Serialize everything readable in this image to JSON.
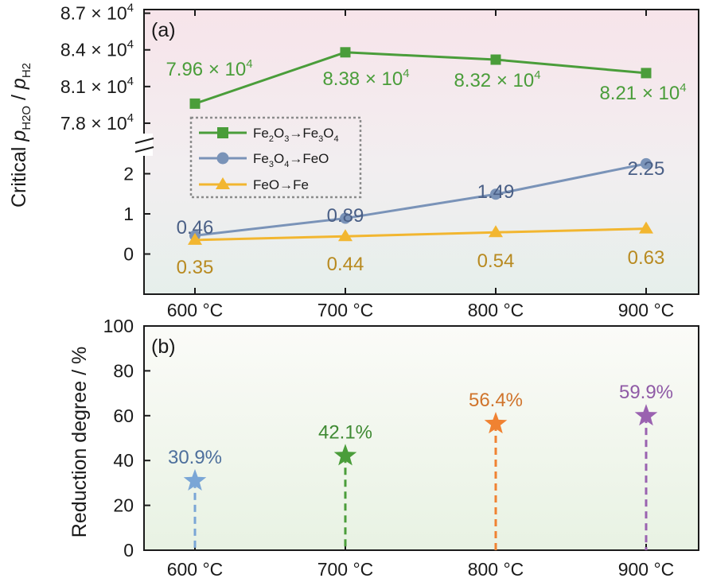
{
  "colors": {
    "fe2o3": "#4a9d3a",
    "fe3o4": "#7a93b8",
    "feo": "#f2b630",
    "star_600": "#7aa6d6",
    "star_700": "#4a9d3a",
    "star_800": "#f08232",
    "star_900": "#9a62b0",
    "label_600": "#4d6f9c",
    "label_700": "#3f8a33",
    "label_800": "#d0742c",
    "label_900": "#8f5aa6",
    "fe3o4_label": "#4a5f86",
    "feo_label": "#b88a20"
  },
  "chart_data": [
    {
      "panel": "(a)",
      "type": "line",
      "ylabel": {
        "prefix": "Critical ",
        "p1": "p",
        "sub1": "H2O",
        "sep": " / ",
        "p2": "p",
        "sub2": "H2"
      },
      "categories": [
        "600 °C",
        "700 °C",
        "800 °C",
        "900 °C"
      ],
      "broken_axis": true,
      "upper_ticks": [
        {
          "value": 78000,
          "mant": "7.8 × 10",
          "exp": "4"
        },
        {
          "value": 81000,
          "mant": "8.1 × 10",
          "exp": "4"
        },
        {
          "value": 84000,
          "mant": "8.4 × 10",
          "exp": "4"
        },
        {
          "value": 87000,
          "mant": "8.7 × 10",
          "exp": "4"
        }
      ],
      "upper_ylim": [
        76500,
        87300
      ],
      "lower_ticks": [
        "0",
        "1",
        "2"
      ],
      "lower_ylim": [
        -1,
        3
      ],
      "legend_position": "left",
      "series": [
        {
          "key": "fe2o3",
          "legend": {
            "a": "Fe",
            "s1": "2",
            "b": "O",
            "s2": "3",
            "arrow": "→",
            "c": "Fe",
            "s3": "3",
            "d": "O",
            "s4": "4"
          },
          "marker": "square",
          "axis_part": "upper",
          "values": [
            79600,
            83800,
            83200,
            82100
          ],
          "labels": [
            {
              "mant": "7.96 × 10",
              "exp": "4"
            },
            {
              "mant": "8.38 × 10",
              "exp": "4"
            },
            {
              "mant": "8.32 × 10",
              "exp": "4"
            },
            {
              "mant": "8.21 × 10",
              "exp": "4"
            }
          ]
        },
        {
          "key": "fe3o4",
          "legend": {
            "a": "Fe",
            "s1": "3",
            "b": "O",
            "s2": "4",
            "arrow": "→",
            "c": "FeO"
          },
          "marker": "circle",
          "axis_part": "lower",
          "values": [
            0.46,
            0.89,
            1.49,
            2.25
          ],
          "labels": [
            "0.46",
            "0.89",
            "1.49",
            "2.25"
          ]
        },
        {
          "key": "feo",
          "legend": {
            "a": "FeO",
            "arrow": "→",
            "c": "Fe"
          },
          "marker": "triangle",
          "axis_part": "lower",
          "values": [
            0.35,
            0.44,
            0.54,
            0.63
          ],
          "labels": [
            "0.35",
            "0.44",
            "0.54",
            "0.63"
          ]
        }
      ]
    },
    {
      "panel": "(b)",
      "type": "scatter",
      "ylabel": "Reduction degree / %",
      "categories": [
        "600 °C",
        "700 °C",
        "800 °C",
        "900 °C"
      ],
      "ylim": [
        0,
        100
      ],
      "yticks": [
        "0",
        "20",
        "40",
        "60",
        "80",
        "100"
      ],
      "values": [
        30.9,
        42.1,
        56.4,
        59.9
      ],
      "labels": [
        "30.9%",
        "42.1%",
        "56.4%",
        "59.9%"
      ],
      "marker": "star",
      "drop_lines": true
    }
  ]
}
